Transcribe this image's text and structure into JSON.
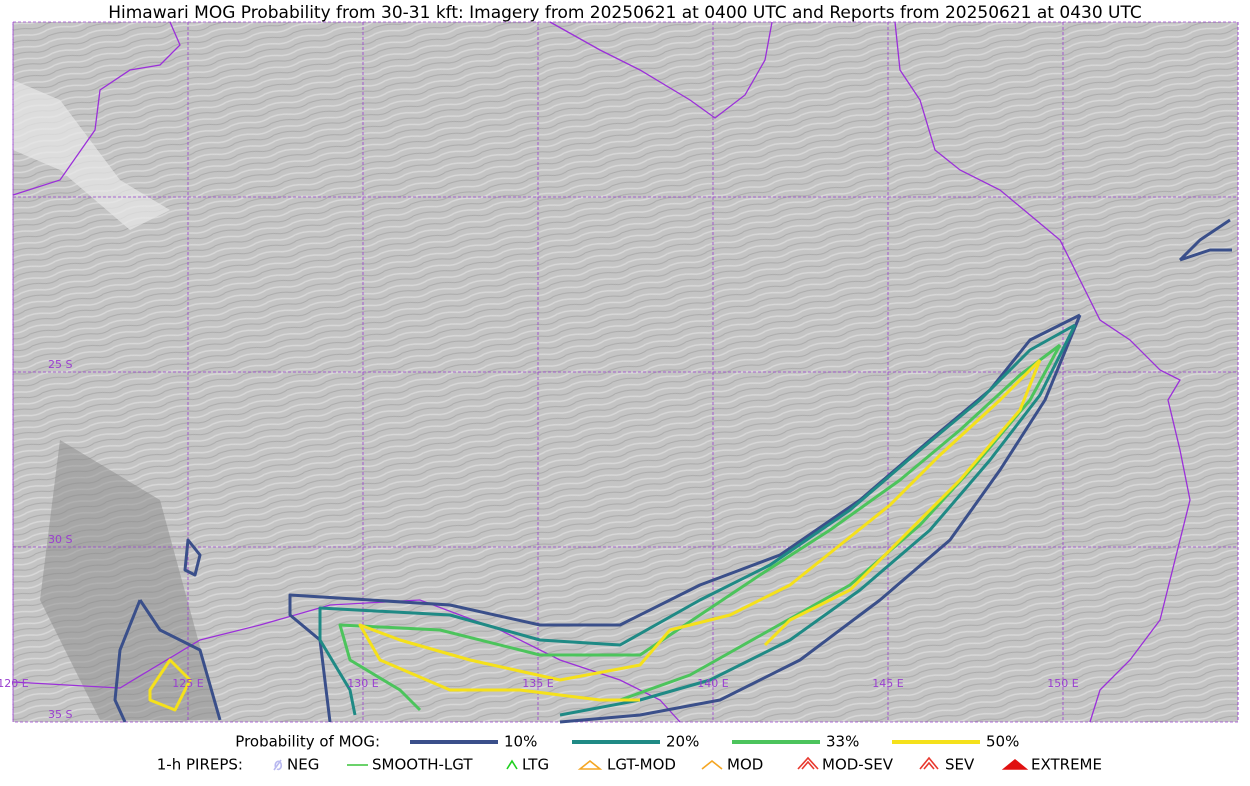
{
  "title": "Himawari MOG Probability from 30-31 kft: Imagery from 20250621 at 0400 UTC and Reports from 20250621 at 0430 UTC",
  "map": {
    "lat_labels": [
      "25 S",
      "30 S",
      "35 S"
    ],
    "lon_labels": [
      "120 E",
      "125 E",
      "130 E",
      "135 E",
      "140 E",
      "145 E",
      "150 E"
    ]
  },
  "legend": {
    "probability_title": "Probability of MOG:",
    "probability_levels": [
      "10%",
      "20%",
      "33%",
      "50%"
    ],
    "pireps_title": "1-h PIREPS:",
    "pireps": [
      "NEG",
      "SMOOTH-LGT",
      "LTG",
      "LGT-MOD",
      "MOD",
      "MOD-SEV",
      "SEV",
      "EXTREME"
    ]
  }
}
